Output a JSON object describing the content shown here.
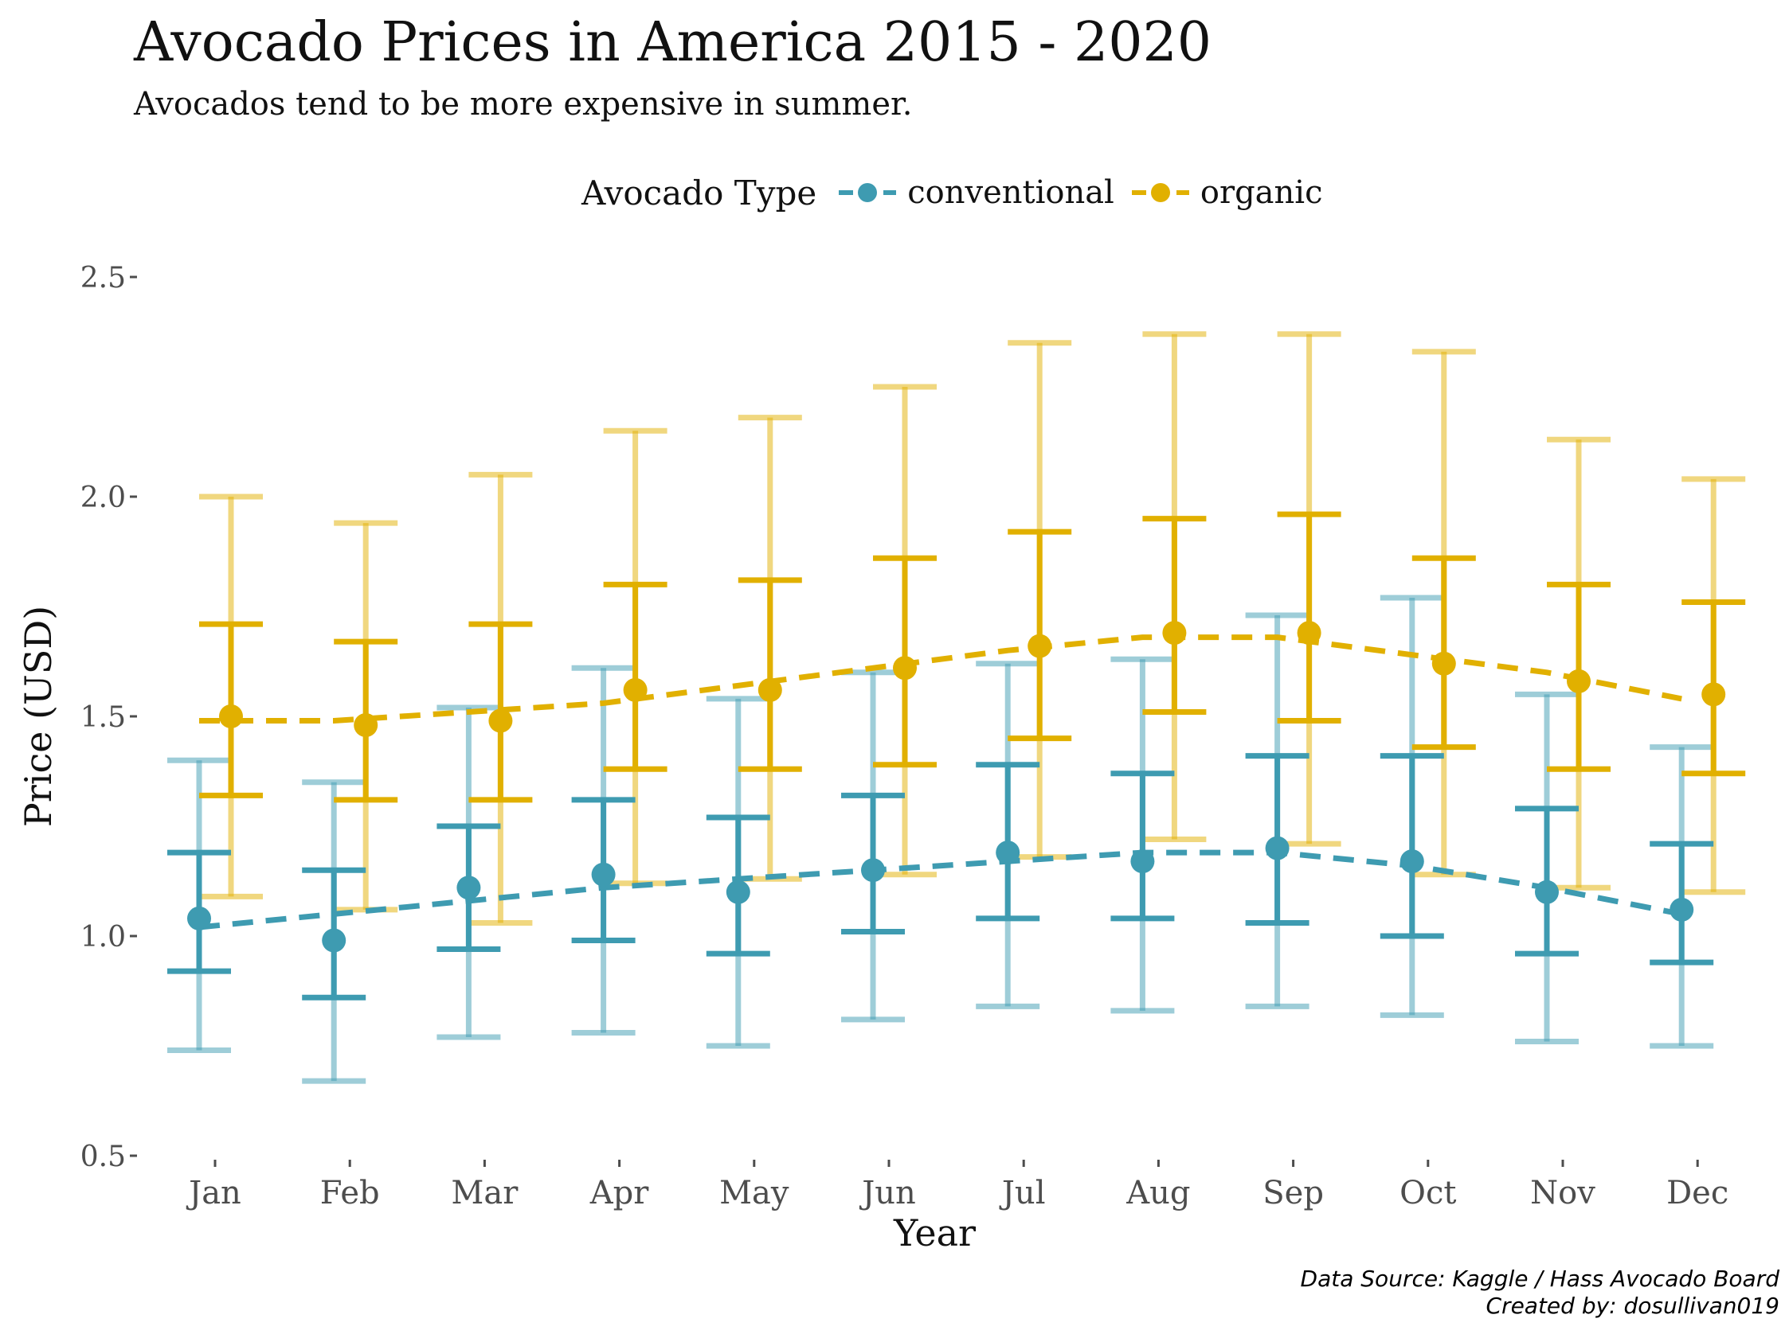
{
  "title": "Avocado Prices in America 2015 - 2020",
  "subtitle": "Avocados tend to be more expensive in summer.",
  "legend": {
    "title": "Avocado Type",
    "items": [
      "conventional",
      "organic"
    ]
  },
  "caption": {
    "line1": "Data Source: Kaggle / Hass Avocado Board",
    "line2": "Created by: dosullivan019"
  },
  "colors": {
    "conventional": "#3e9bb1",
    "organic": "#e1b000",
    "tick": "#4d4d4d"
  },
  "chart_data": {
    "type": "line",
    "title": "Avocado Prices in America 2015 - 2020",
    "subtitle": "Avocados tend to be more expensive in summer.",
    "xlabel": "Year",
    "ylabel": "Price (USD)",
    "ylim": [
      0.5,
      2.5
    ],
    "yticks": [
      "0.5",
      "1.0",
      "1.5",
      "2.0",
      "2.5"
    ],
    "grid": false,
    "legend_position": "top",
    "categories": [
      "Jan",
      "Feb",
      "Mar",
      "Apr",
      "May",
      "Jun",
      "Jul",
      "Aug",
      "Sep",
      "Oct",
      "Nov",
      "Dec"
    ],
    "series": [
      {
        "name": "conventional",
        "mean": [
          1.04,
          0.99,
          1.11,
          1.14,
          1.1,
          1.15,
          1.19,
          1.17,
          1.2,
          1.17,
          1.1,
          1.06
        ],
        "sd_low": [
          0.92,
          0.86,
          0.97,
          0.99,
          0.96,
          1.01,
          1.04,
          1.04,
          1.03,
          1.0,
          0.96,
          0.94
        ],
        "sd_high": [
          1.19,
          1.15,
          1.25,
          1.31,
          1.27,
          1.32,
          1.39,
          1.37,
          1.41,
          1.41,
          1.29,
          1.21
        ],
        "range_low": [
          0.74,
          0.67,
          0.77,
          0.78,
          0.75,
          0.81,
          0.84,
          0.83,
          0.84,
          0.82,
          0.76,
          0.75
        ],
        "range_high": [
          1.4,
          1.35,
          1.52,
          1.61,
          1.54,
          1.6,
          1.62,
          1.63,
          1.73,
          1.77,
          1.55,
          1.43
        ],
        "trend": [
          1.02,
          1.05,
          1.08,
          1.11,
          1.13,
          1.15,
          1.17,
          1.19,
          1.19,
          1.16,
          1.11,
          1.05
        ]
      },
      {
        "name": "organic",
        "mean": [
          1.5,
          1.48,
          1.49,
          1.56,
          1.56,
          1.61,
          1.66,
          1.69,
          1.69,
          1.62,
          1.58,
          1.55
        ],
        "sd_low": [
          1.32,
          1.31,
          1.31,
          1.38,
          1.38,
          1.39,
          1.45,
          1.51,
          1.49,
          1.43,
          1.38,
          1.37
        ],
        "sd_high": [
          1.71,
          1.67,
          1.71,
          1.8,
          1.81,
          1.86,
          1.92,
          1.95,
          1.96,
          1.86,
          1.8,
          1.76
        ],
        "range_low": [
          1.09,
          1.06,
          1.03,
          1.12,
          1.13,
          1.14,
          1.18,
          1.22,
          1.21,
          1.14,
          1.11,
          1.1
        ],
        "range_high": [
          2.0,
          1.94,
          2.05,
          2.15,
          2.18,
          2.25,
          2.35,
          2.37,
          2.37,
          2.33,
          2.13,
          2.04
        ],
        "trend": [
          1.49,
          1.49,
          1.51,
          1.53,
          1.57,
          1.61,
          1.65,
          1.68,
          1.68,
          1.64,
          1.6,
          1.54
        ]
      }
    ]
  }
}
